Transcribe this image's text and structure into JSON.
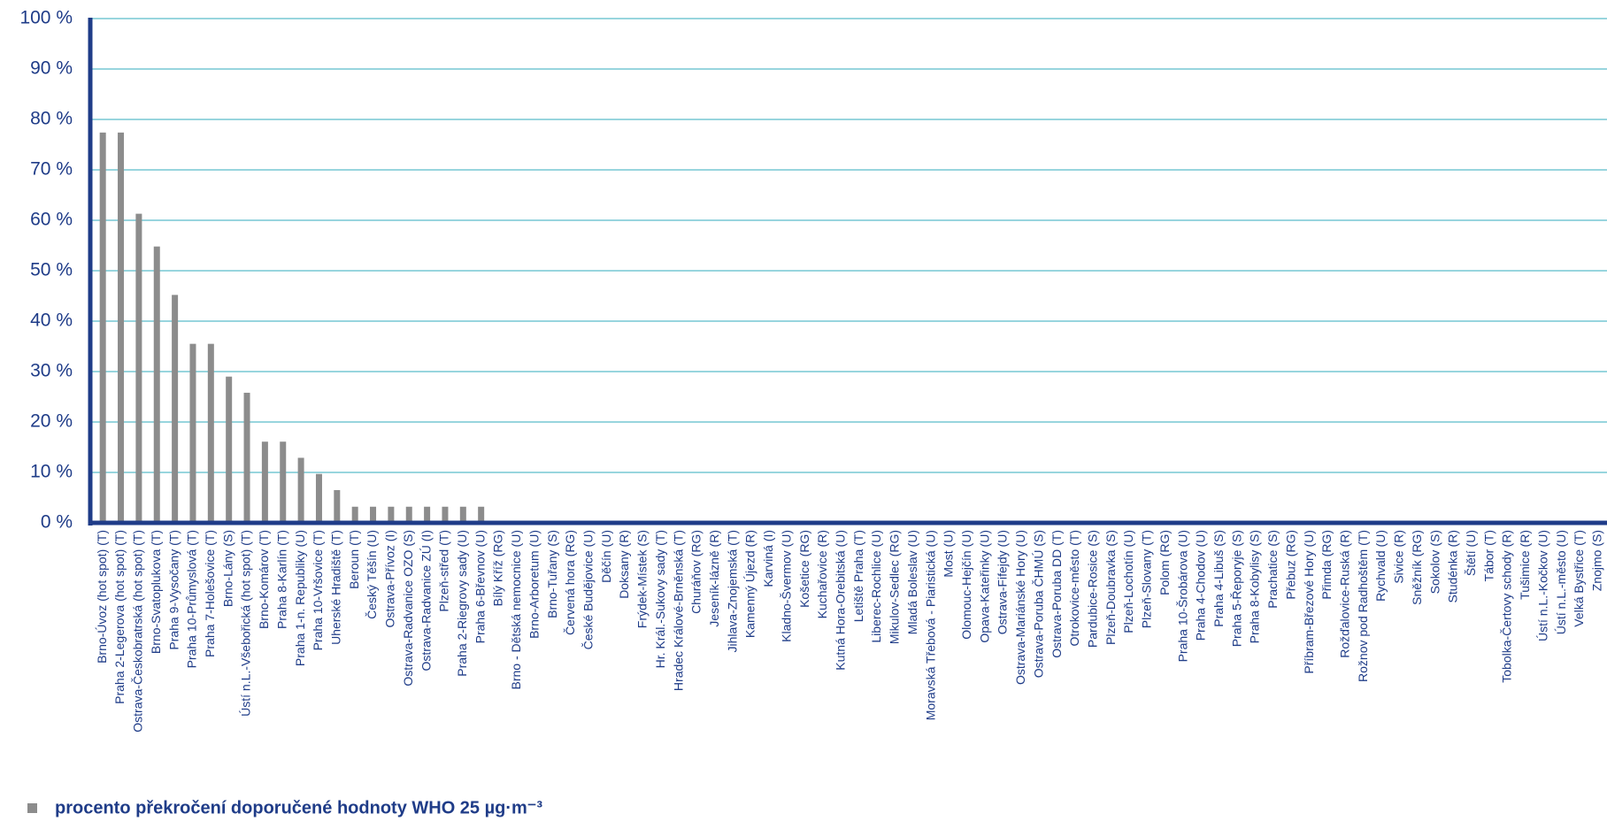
{
  "chart_data": {
    "type": "bar",
    "categories": [
      "Brno-Úvoz (hot spot) (T)",
      "Praha 2-Legerova (hot spot) (T)",
      "Ostrava-Českobratrská (hot spot) (T)",
      "Brno-Svatoplukova (T)",
      "Praha 9-Vysočany (T)",
      "Praha 10-Průmyslová (T)",
      "Praha 7-Holešovice (T)",
      "Brno-Lány (S)",
      "Ústí n.L.-Všebořická (hot spot) (T)",
      "Brno-Komárov (T)",
      "Praha 8-Karlín (T)",
      "Praha 1-n. Republiky (U)",
      "Praha 10-Vršovice (T)",
      "Uherské Hradiště (T)",
      "Beroun (T)",
      "Český Těšín (U)",
      "Ostrava-Přívoz (I)",
      "Ostrava-Radvanice OZO (S)",
      "Ostrava-Radvanice ZÚ (I)",
      "Plzeň-střed (T)",
      "Praha 2-Riegrovy sady (U)",
      "Praha 6-Břevnov (U)",
      "Bílý Kříž (RG)",
      "Brno - Dětská nemocnice (U)",
      "Brno-Arboretum (U)",
      "Brno-Tuřany (S)",
      "Červená hora (RG)",
      "České Budějovice (U)",
      "Děčín (U)",
      "Doksany (R)",
      "Frýdek-Místek (S)",
      "Hr. Král.-Sukovy sady (T)",
      "Hradec Králové-Brněnská (T)",
      "Churáňov (RG)",
      "Jeseník-lázně (R)",
      "Jihlava-Znojemská (T)",
      "Kamenný Újezd (R)",
      "Karviná (I)",
      "Kladno-Švermov (U)",
      "Košetice (RG)",
      "Kuchařovice (R)",
      "Kutná Hora-Orebitská (U)",
      "Letiště Praha (T)",
      "Liberec-Rochlice (U)",
      "Mikulov-Sedlec (RG)",
      "Mladá Boleslav (U)",
      "Moravská Třebová - Piaristická (U)",
      "Most (U)",
      "Olomouc-Hejčín (U)",
      "Opava-Kateřinky (U)",
      "Ostrava-Fifejdy (U)",
      "Ostrava-Mariánské Hory (U)",
      "Ostrava-Poruba ČHMÚ (S)",
      "Ostrava-Poruba DD (T)",
      "Otrokovice-město (T)",
      "Pardubice-Rosice (S)",
      "Plzeň-Doubravka (S)",
      "Plzeň-Lochotín (U)",
      "Plzeň-Slovany (T)",
      "Polom (RG)",
      "Praha 10-Šrobárova (U)",
      "Praha 4-Chodov (U)",
      "Praha 4-Libuš (S)",
      "Praha 5-Řeporyje (S)",
      "Praha 8-Kobylisy (S)",
      "Prachatice (S)",
      "Přebuz (RG)",
      "Příbram-Březové Hory (U)",
      "Přimda (RG)",
      "Rožďalovice-Ruská (R)",
      "Rožnov pod Radhoštěm (T)",
      "Rychvald (U)",
      "Sivice (R)",
      "Sněžník (RG)",
      "Sokolov (S)",
      "Studénka (R)",
      "Štětí (U)",
      "Tábor (T)",
      "Tobolka-Čertovy schody (R)",
      "Tušimice (R)",
      "Ústí n.L.-Kočkov (U)",
      "Ústí n.L.-město (U)",
      "Velká Bystřice (T)",
      "Znojmo (S)"
    ],
    "series": [
      {
        "name": "procento překročení doporučené hodnoty  WHO 25 µg·m⁻³",
        "color": "#8c8c8c",
        "values": [
          77.4,
          77.4,
          61.3,
          54.8,
          45.2,
          35.5,
          35.5,
          29.0,
          25.8,
          16.1,
          16.1,
          12.9,
          9.7,
          6.5,
          3.2,
          3.2,
          3.2,
          3.2,
          3.2,
          3.2,
          3.2,
          3.2,
          0,
          0,
          0,
          0,
          0,
          0,
          0,
          0,
          0,
          0,
          0,
          0,
          0,
          0,
          0,
          0,
          0,
          0,
          0,
          0,
          0,
          0,
          0,
          0,
          0,
          0,
          0,
          0,
          0,
          0,
          0,
          0,
          0,
          0,
          0,
          0,
          0,
          0,
          0,
          0,
          0,
          0,
          0,
          0,
          0,
          0,
          0,
          0,
          0,
          0,
          0,
          0,
          0,
          0,
          0,
          0,
          0,
          0,
          0,
          0,
          0,
          0
        ]
      }
    ],
    "ylim": [
      0,
      100
    ],
    "yticks": [
      {
        "value": 0,
        "label": "0 %"
      },
      {
        "value": 10,
        "label": "10 %"
      },
      {
        "value": 20,
        "label": "20 %"
      },
      {
        "value": 30,
        "label": "30 %"
      },
      {
        "value": 40,
        "label": "40 %"
      },
      {
        "value": 50,
        "label": "50 %"
      },
      {
        "value": 60,
        "label": "60 %"
      },
      {
        "value": 70,
        "label": "70 %"
      },
      {
        "value": 80,
        "label": "80 %"
      },
      {
        "value": 90,
        "label": "90 %"
      },
      {
        "value": 100,
        "label": "100 %"
      }
    ],
    "grid": true,
    "legend": "bottom-left"
  }
}
